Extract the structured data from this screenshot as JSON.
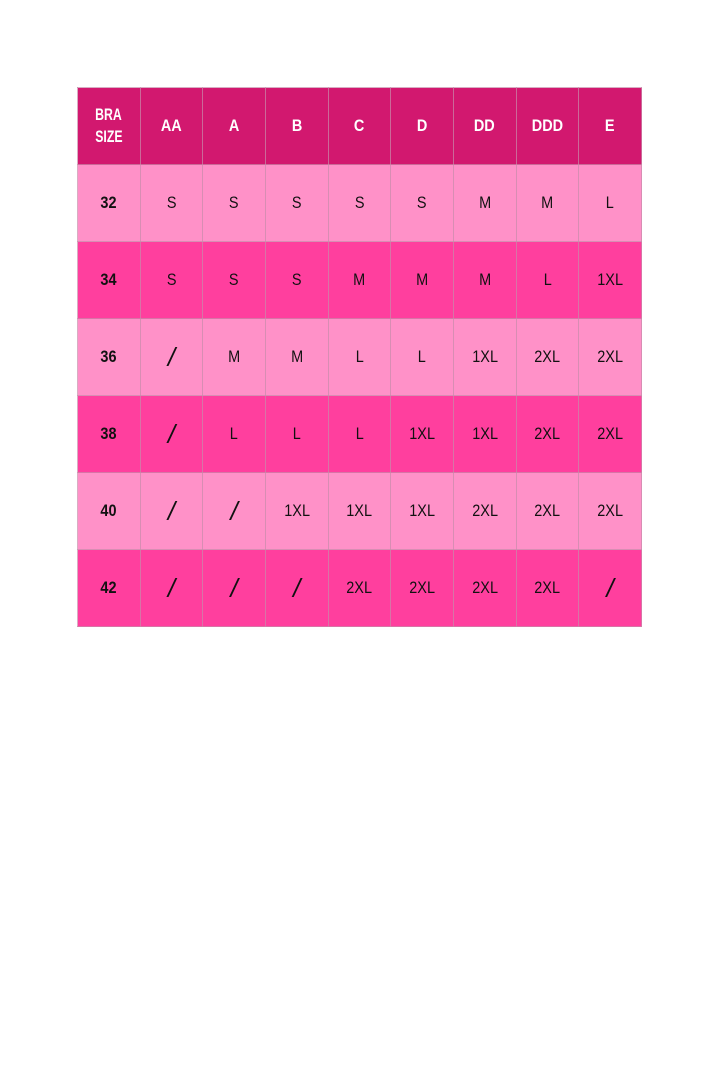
{
  "table": {
    "corner": [
      "BRA",
      "SIZE"
    ],
    "columns": [
      "AA",
      "A",
      "B",
      "C",
      "D",
      "DD",
      "DDD",
      "E"
    ],
    "rows": [
      {
        "band": "32",
        "cells": [
          "S",
          "S",
          "S",
          "S",
          "S",
          "M",
          "M",
          "L"
        ]
      },
      {
        "band": "34",
        "cells": [
          "S",
          "S",
          "S",
          "M",
          "M",
          "M",
          "L",
          "1XL"
        ]
      },
      {
        "band": "36",
        "cells": [
          "/",
          "M",
          "M",
          "L",
          "L",
          "1XL",
          "2XL",
          "2XL"
        ]
      },
      {
        "band": "38",
        "cells": [
          "/",
          "L",
          "L",
          "L",
          "1XL",
          "1XL",
          "2XL",
          "2XL"
        ]
      },
      {
        "band": "40",
        "cells": [
          "/",
          "/",
          "1XL",
          "1XL",
          "1XL",
          "2XL",
          "2XL",
          "2XL"
        ]
      },
      {
        "band": "42",
        "cells": [
          "/",
          "/",
          "/",
          "2XL",
          "2XL",
          "2XL",
          "2XL",
          "/"
        ]
      }
    ]
  },
  "colors": {
    "header": "#D2186F",
    "row_light": "#FF91C8",
    "row_dark": "#FF3F9E"
  }
}
